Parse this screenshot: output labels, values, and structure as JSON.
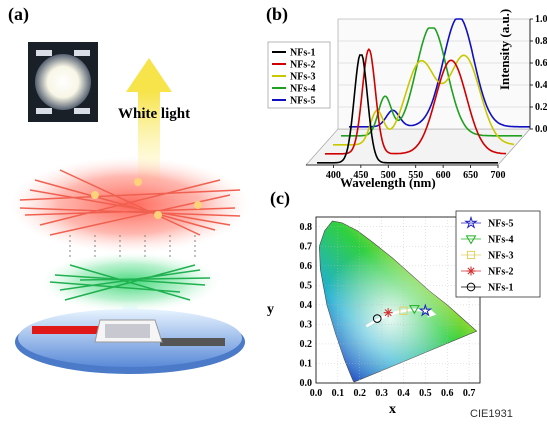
{
  "panels": {
    "a": {
      "label": "(a)",
      "arrow_text": "White light"
    },
    "b": {
      "label": "(b)",
      "xlabel": "Wavelength (nm)",
      "ylabel": "Intensity (a.u.)"
    },
    "c": {
      "label": "(c)",
      "xlabel": "x",
      "ylabel": "y",
      "footnote": "CIE1931"
    }
  },
  "colors": {
    "red_fibers": "#f05a50",
    "green_fibers": "#30d060",
    "arrow_yellow": "#f7e34a"
  },
  "chart_data": [
    {
      "type": "line",
      "xlim": [
        350,
        700
      ],
      "ylim": [
        0.0,
        1.0
      ],
      "x_ticks": [
        "400",
        "450",
        "500",
        "550",
        "600",
        "650",
        "700"
      ],
      "y_ticks": [
        "0.0",
        "0.2",
        "0.4",
        "0.6",
        "0.8",
        "1.0"
      ],
      "series": [
        {
          "name": "NFs-1",
          "color": "#000000",
          "peaks": [
            {
              "x": 450,
              "y": 1.0
            }
          ]
        },
        {
          "name": "NFs-2",
          "color": "#d00000",
          "peaks": [
            {
              "x": 450,
              "y": 0.95
            },
            {
              "x": 600,
              "y": 0.85
            }
          ]
        },
        {
          "name": "NFs-3",
          "color": "#c8c800",
          "peaks": [
            {
              "x": 450,
              "y": 0.3
            },
            {
              "x": 530,
              "y": 0.75
            },
            {
              "x": 610,
              "y": 0.8
            }
          ]
        },
        {
          "name": "NFs-4",
          "color": "#20a020",
          "peaks": [
            {
              "x": 450,
              "y": 0.35
            },
            {
              "x": 535,
              "y": 1.0
            }
          ]
        },
        {
          "name": "NFs-5",
          "color": "#1010c0",
          "peaks": [
            {
              "x": 450,
              "y": 0.15
            },
            {
              "x": 570,
              "y": 1.0
            }
          ]
        }
      ]
    },
    {
      "type": "scatter",
      "xlim": [
        0.0,
        0.75
      ],
      "ylim": [
        0.0,
        0.85
      ],
      "x_ticks": [
        "0.0",
        "0.1",
        "0.2",
        "0.3",
        "0.4",
        "0.5",
        "0.6",
        "0.7"
      ],
      "y_ticks": [
        "0.0",
        "0.1",
        "0.2",
        "0.3",
        "0.4",
        "0.5",
        "0.6",
        "0.7",
        "0.8"
      ],
      "points": [
        {
          "name": "NFs-5",
          "marker": "star",
          "color": "#2020c0",
          "x": 0.5,
          "y": 0.37
        },
        {
          "name": "NFs-4",
          "marker": "triangle-down",
          "color": "#20b020",
          "x": 0.45,
          "y": 0.38
        },
        {
          "name": "NFs-3",
          "marker": "square",
          "color": "#e0d060",
          "x": 0.4,
          "y": 0.37
        },
        {
          "name": "NFs-2",
          "marker": "asterisk",
          "color": "#d03030",
          "x": 0.33,
          "y": 0.36
        },
        {
          "name": "NFs-1",
          "marker": "circle",
          "color": "#000000",
          "x": 0.28,
          "y": 0.33
        }
      ],
      "legend_position": "top-right"
    }
  ]
}
